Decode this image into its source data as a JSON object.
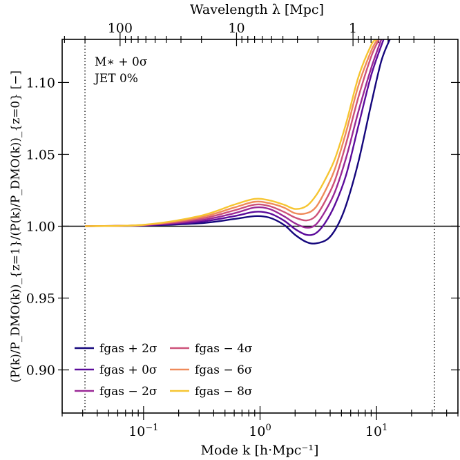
{
  "chart_data": {
    "type": "line",
    "xlabel": "Mode k [h·Mpc⁻¹]",
    "ylabel": "(P(k)/P_DMO(k))_{z=1}/(P(k)/P_DMO(k))_{z=0} [−]",
    "top_xlabel": "Wavelength λ [Mpc]",
    "xscale": "log",
    "xlim": [
      0.02,
      50
    ],
    "ylim": [
      0.87,
      1.13
    ],
    "x_ticks": [
      {
        "value": 0.1,
        "label": "10",
        "exp": "−1"
      },
      {
        "value": 1,
        "label": "10",
        "exp": "0"
      },
      {
        "value": 10,
        "label": "10",
        "exp": "1"
      }
    ],
    "y_ticks": [
      {
        "value": 0.9,
        "label": "0.90"
      },
      {
        "value": 0.95,
        "label": "0.95"
      },
      {
        "value": 1.0,
        "label": "1.00"
      },
      {
        "value": 1.05,
        "label": "1.05"
      },
      {
        "value": 1.1,
        "label": "1.10"
      }
    ],
    "top_ticks": [
      {
        "wavelength": 100,
        "label": "100"
      },
      {
        "wavelength": 10,
        "label": "10"
      },
      {
        "wavelength": 1,
        "label": "1"
      }
    ],
    "reference_line": 1.0,
    "vertical_lines": [
      0.0314,
      31.4
    ],
    "annotations": [
      "M∗ + 0σ",
      "JET 0%"
    ],
    "legend": {
      "position": "lower-left",
      "columns": 2
    },
    "series": [
      {
        "name": "fgas + 2σ",
        "color": "#14067c",
        "points": [
          [
            0.0314,
            1.0
          ],
          [
            0.1,
            1.0005
          ],
          [
            0.3,
            1.002
          ],
          [
            0.6,
            1.005
          ],
          [
            0.9,
            1.007
          ],
          [
            1.2,
            1.006
          ],
          [
            1.6,
            1.001
          ],
          [
            2.0,
            0.994
          ],
          [
            2.5,
            0.989
          ],
          [
            3.0,
            0.988
          ],
          [
            3.8,
            0.991
          ],
          [
            4.6,
            1.0
          ],
          [
            5.5,
            1.015
          ],
          [
            7,
            1.045
          ],
          [
            9,
            1.085
          ],
          [
            11,
            1.115
          ],
          [
            13,
            1.13
          ]
        ]
      },
      {
        "name": "fgas + 0σ",
        "color": "#5b0b9b",
        "points": [
          [
            0.0314,
            1.0
          ],
          [
            0.1,
            1.0006
          ],
          [
            0.3,
            1.003
          ],
          [
            0.6,
            1.007
          ],
          [
            0.9,
            1.01
          ],
          [
            1.2,
            1.009
          ],
          [
            1.6,
            1.004
          ],
          [
            2.0,
            0.998
          ],
          [
            2.5,
            0.994
          ],
          [
            3.0,
            0.995
          ],
          [
            3.6,
            1.002
          ],
          [
            4.4,
            1.015
          ],
          [
            5.5,
            1.036
          ],
          [
            7,
            1.07
          ],
          [
            9,
            1.105
          ],
          [
            11.5,
            1.13
          ]
        ]
      },
      {
        "name": "fgas − 2σ",
        "color": "#9a2896",
        "points": [
          [
            0.0314,
            1.0
          ],
          [
            0.1,
            1.0007
          ],
          [
            0.3,
            1.004
          ],
          [
            0.6,
            1.009
          ],
          [
            0.9,
            1.013
          ],
          [
            1.2,
            1.012
          ],
          [
            1.6,
            1.007
          ],
          [
            2.0,
            1.002
          ],
          [
            2.5,
            0.999
          ],
          [
            3.0,
            1.001
          ],
          [
            3.6,
            1.01
          ],
          [
            4.4,
            1.024
          ],
          [
            5.5,
            1.048
          ],
          [
            7,
            1.08
          ],
          [
            9,
            1.11
          ],
          [
            11,
            1.13
          ]
        ]
      },
      {
        "name": "fgas − 4σ",
        "color": "#cd5179",
        "points": [
          [
            0.0314,
            1.0
          ],
          [
            0.1,
            1.0008
          ],
          [
            0.3,
            1.005
          ],
          [
            0.6,
            1.011
          ],
          [
            0.9,
            1.015
          ],
          [
            1.2,
            1.014
          ],
          [
            1.6,
            1.01
          ],
          [
            2.0,
            1.006
          ],
          [
            2.5,
            1.004
          ],
          [
            3.0,
            1.007
          ],
          [
            3.6,
            1.017
          ],
          [
            4.4,
            1.032
          ],
          [
            5.5,
            1.058
          ],
          [
            7,
            1.09
          ],
          [
            9,
            1.118
          ],
          [
            10.5,
            1.13
          ]
        ]
      },
      {
        "name": "fgas − 6σ",
        "color": "#ef8a5a",
        "points": [
          [
            0.0314,
            1.0
          ],
          [
            0.1,
            1.0009
          ],
          [
            0.3,
            1.006
          ],
          [
            0.6,
            1.013
          ],
          [
            0.9,
            1.017
          ],
          [
            1.2,
            1.016
          ],
          [
            1.6,
            1.013
          ],
          [
            2.0,
            1.009
          ],
          [
            2.5,
            1.009
          ],
          [
            3.0,
            1.013
          ],
          [
            3.6,
            1.024
          ],
          [
            4.4,
            1.04
          ],
          [
            5.5,
            1.066
          ],
          [
            7,
            1.098
          ],
          [
            9,
            1.122
          ],
          [
            10.2,
            1.13
          ]
        ]
      },
      {
        "name": "fgas − 8σ",
        "color": "#f6c531",
        "points": [
          [
            0.0314,
            1.0
          ],
          [
            0.1,
            1.001
          ],
          [
            0.3,
            1.007
          ],
          [
            0.6,
            1.015
          ],
          [
            0.9,
            1.019
          ],
          [
            1.2,
            1.018
          ],
          [
            1.6,
            1.015
          ],
          [
            2.0,
            1.012
          ],
          [
            2.5,
            1.014
          ],
          [
            3.0,
            1.021
          ],
          [
            3.6,
            1.032
          ],
          [
            4.4,
            1.047
          ],
          [
            5.5,
            1.072
          ],
          [
            7,
            1.104
          ],
          [
            9,
            1.126
          ],
          [
            10,
            1.13
          ]
        ]
      }
    ]
  }
}
